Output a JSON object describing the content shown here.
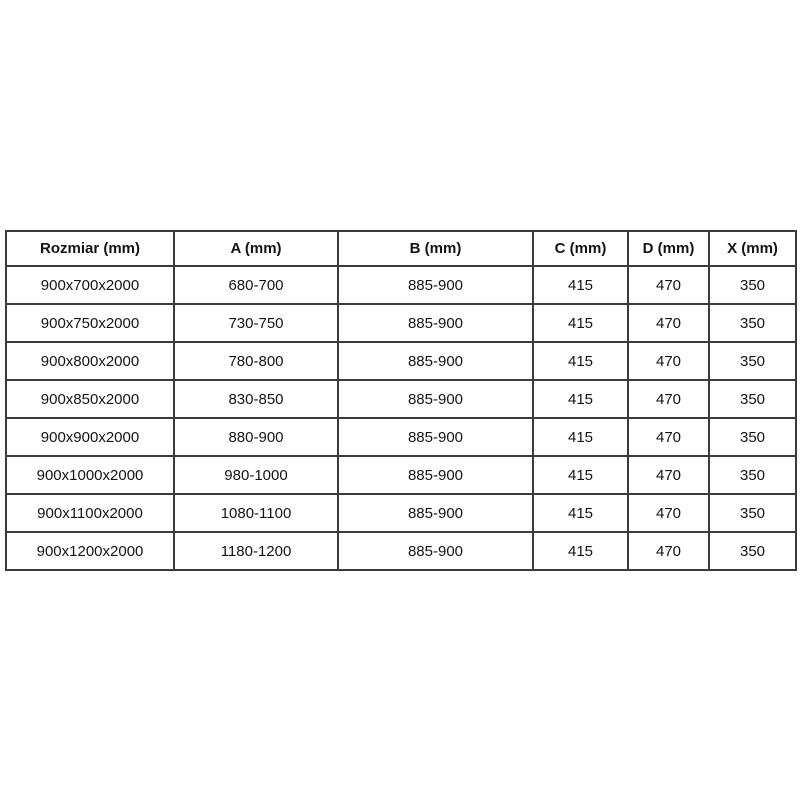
{
  "page": {
    "background": "#ffffff"
  },
  "table": {
    "name": "dimensions-table",
    "headers": [
      "Rozmiar (mm)",
      "A (mm)",
      "B (mm)",
      "C (mm)",
      "D (mm)",
      "X (mm)"
    ],
    "rows": [
      [
        "900x700x2000",
        "680-700",
        "885-900",
        "415",
        "470",
        "350"
      ],
      [
        "900x750x2000",
        "730-750",
        "885-900",
        "415",
        "470",
        "350"
      ],
      [
        "900x800x2000",
        "780-800",
        "885-900",
        "415",
        "470",
        "350"
      ],
      [
        "900x850x2000",
        "830-850",
        "885-900",
        "415",
        "470",
        "350"
      ],
      [
        "900x900x2000",
        "880-900",
        "885-900",
        "415",
        "470",
        "350"
      ],
      [
        "900x1000x2000",
        "980-1000",
        "885-900",
        "415",
        "470",
        "350"
      ],
      [
        "900x1100x2000",
        "1080-1100",
        "885-900",
        "415",
        "470",
        "350"
      ],
      [
        "900x1200x2000",
        "1180-1200",
        "885-900",
        "415",
        "470",
        "350"
      ]
    ],
    "colors": {
      "border": "#3b3b3b",
      "text": "#141414",
      "background": "#ffffff"
    }
  }
}
